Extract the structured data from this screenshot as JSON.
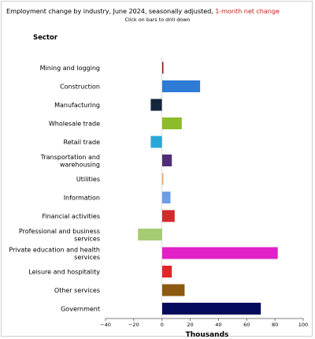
{
  "title": {
    "main": "Employment change by industry, June 2024, seasonally adjusted, ",
    "highlight": "1-month net change"
  },
  "subtitle": "Click on bars to drill down",
  "category_header": "Sector",
  "colors": {
    "highlight": "#c0281d"
  },
  "chart_data": {
    "type": "bar",
    "orientation": "horizontal",
    "xlabel": "Thousands",
    "ylabel": "Sector",
    "xlim": [
      -40,
      100
    ],
    "xticks": [
      "−40",
      "−20",
      "0",
      "20",
      "40",
      "60",
      "80",
      "100"
    ],
    "xtick_values": [
      -40,
      -20,
      0,
      20,
      40,
      60,
      80,
      100
    ],
    "grid": false,
    "categories": [
      [
        "Mining and logging"
      ],
      [
        "Construction"
      ],
      [
        "Manufacturing"
      ],
      [
        "Wholesale trade"
      ],
      [
        "Retail trade"
      ],
      [
        "Transportation and",
        "warehousing"
      ],
      [
        "Utilities"
      ],
      [
        "Information"
      ],
      [
        "Financial activities"
      ],
      [
        "Professional and business",
        "services"
      ],
      [
        "Private education and health",
        "services"
      ],
      [
        "Leisure and hospitality"
      ],
      [
        "Other services"
      ],
      [
        "Government"
      ]
    ],
    "values": [
      1,
      27,
      -8,
      14,
      -8,
      7,
      1,
      6,
      9,
      -17,
      82,
      7,
      16,
      70
    ],
    "bar_colors": [
      "#8b1a1a",
      "#2e7bd6",
      "#14263d",
      "#8cbc2b",
      "#27a8d8",
      "#4f2e78",
      "#f0a868",
      "#6d9eea",
      "#d02a2a",
      "#a6cc73",
      "#e021c8",
      "#e0262a",
      "#8c5a10",
      "#040a5c"
    ]
  }
}
